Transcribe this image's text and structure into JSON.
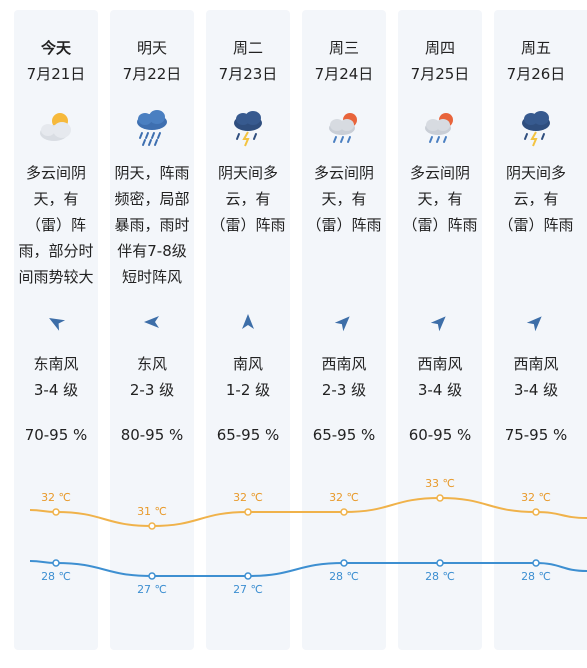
{
  "days": [
    {
      "day": "今天",
      "date": "7月21日",
      "icon": "partly-cloudy-sun-icon",
      "desc": [
        "多云间阴",
        "天，有",
        "（雷）阵",
        "雨，部分时",
        "间雨势较大"
      ],
      "wind_arrow": "arrow-icon",
      "wind_dir": "东南风",
      "wind_level": "3-4 级",
      "humidity": "70-95 %",
      "high": 32,
      "high_label": "32 ℃",
      "low": 28,
      "low_label": "28 ℃"
    },
    {
      "day": "明天",
      "date": "7月22日",
      "icon": "heavy-rain-icon",
      "desc": [
        "阴天，阵雨",
        "频密，局部",
        "暴雨，雨时",
        "伴有7-8级",
        "短时阵风"
      ],
      "wind_arrow": "arrow-icon",
      "wind_dir": "东风",
      "wind_level": "2-3 级",
      "humidity": "80-95 %",
      "high": 31,
      "high_label": "31 ℃",
      "low": 27,
      "low_label": "27 ℃"
    },
    {
      "day": "周二",
      "date": "7月23日",
      "icon": "thunder-rain-icon",
      "desc": [
        "阴天间多",
        "云，有",
        "（雷）阵雨"
      ],
      "wind_arrow": "arrow-icon",
      "wind_dir": "南风",
      "wind_level": "1-2 级",
      "humidity": "65-95 %",
      "high": 32,
      "high_label": "32 ℃",
      "low": 27,
      "low_label": "27 ℃"
    },
    {
      "day": "周三",
      "date": "7月24日",
      "icon": "sun-cloud-rain-icon",
      "desc": [
        "多云间阴",
        "天，有",
        "（雷）阵雨"
      ],
      "wind_arrow": "arrow-icon",
      "wind_dir": "西南风",
      "wind_level": "2-3 级",
      "humidity": "65-95 %",
      "high": 32,
      "high_label": "32 ℃",
      "low": 28,
      "low_label": "28 ℃"
    },
    {
      "day": "周四",
      "date": "7月25日",
      "icon": "sun-cloud-rain-icon",
      "desc": [
        "多云间阴",
        "天，有",
        "（雷）阵雨"
      ],
      "wind_arrow": "arrow-icon",
      "wind_dir": "西南风",
      "wind_level": "3-4 级",
      "humidity": "60-95 %",
      "high": 33,
      "high_label": "33 ℃",
      "low": 28,
      "low_label": "28 ℃"
    },
    {
      "day": "周五",
      "date": "7月26日",
      "icon": "thunder-rain-icon",
      "desc": [
        "阴天间多",
        "云，有",
        "（雷）阵雨"
      ],
      "wind_arrow": "arrow-icon",
      "wind_dir": "西南风",
      "wind_level": "3-4 级",
      "humidity": "75-95 %",
      "high": 32,
      "high_label": "32 ℃",
      "low": 28,
      "low_label": "28 ℃"
    }
  ],
  "colors": {
    "high_line": "#f0b24a",
    "low_line": "#3d8fd1",
    "high_text": "#e89a2b",
    "low_text": "#3d8fd1",
    "arrow": "#3d6ea8",
    "column_bg": "#f3f6fa"
  }
}
